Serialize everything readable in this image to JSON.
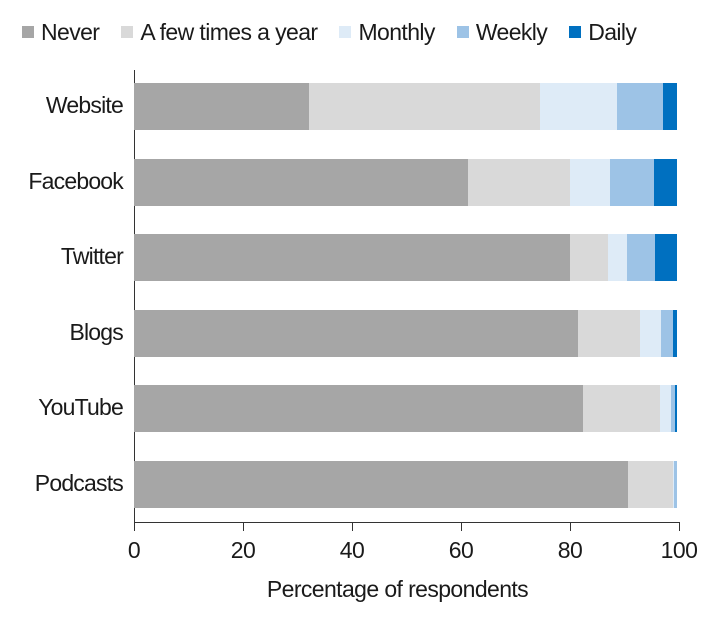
{
  "chart_data": {
    "type": "bar",
    "orientation": "horizontal",
    "stacked": true,
    "title": "",
    "xlabel": "Percentage of respondents",
    "ylabel": "",
    "xlim": [
      0,
      100
    ],
    "xticks": [
      0,
      20,
      40,
      60,
      80,
      100
    ],
    "grid": false,
    "legend_position": "top",
    "categories": [
      "Website",
      "Facebook",
      "Twitter",
      "Blogs",
      "YouTube",
      "Podcasts"
    ],
    "series": [
      {
        "name": "Never",
        "color": "#a6a6a6",
        "values": [
          32.1,
          61.3,
          80.0,
          81.5,
          82.4,
          90.6
        ]
      },
      {
        "name": "A few times a year",
        "color": "#d9d9d9",
        "values": [
          42.4,
          18.7,
          7.0,
          11.3,
          14.1,
          8.3
        ]
      },
      {
        "name": "Monthly",
        "color": "#deebf7",
        "values": [
          14.1,
          7.3,
          3.5,
          3.9,
          2.0,
          0.2
        ]
      },
      {
        "name": "Weekly",
        "color": "#9dc3e6",
        "values": [
          8.5,
          8.1,
          5.1,
          2.2,
          0.8,
          0.5
        ]
      },
      {
        "name": "Daily",
        "color": "#0070c0",
        "values": [
          2.5,
          4.2,
          4.0,
          0.7,
          0.3,
          0.0
        ]
      }
    ]
  },
  "legend": [
    {
      "label": "Never",
      "color": "#a6a6a6"
    },
    {
      "label": "A few times a year",
      "color": "#d9d9d9"
    },
    {
      "label": "Monthly",
      "color": "#deebf7"
    },
    {
      "label": "Weekly",
      "color": "#9dc3e6"
    },
    {
      "label": "Daily",
      "color": "#0070c0"
    }
  ],
  "axis": {
    "x_title": "Percentage of respondents",
    "x_ticks": [
      "0",
      "20",
      "40",
      "60",
      "80",
      "100"
    ]
  }
}
